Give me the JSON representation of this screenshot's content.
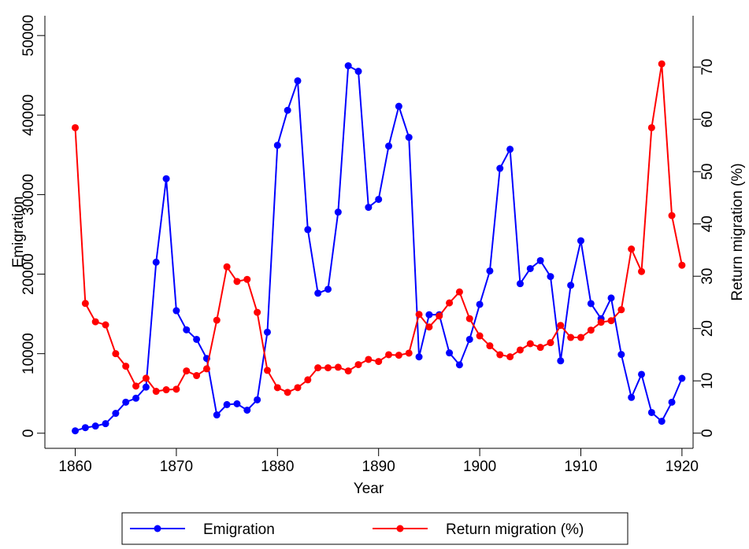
{
  "chart_data": {
    "type": "line",
    "x_label": "Year",
    "y_label": "Emigration",
    "y2_label": "Return migration (%)",
    "x": [
      1860,
      1861,
      1862,
      1863,
      1864,
      1865,
      1866,
      1867,
      1868,
      1869,
      1870,
      1871,
      1872,
      1873,
      1874,
      1875,
      1876,
      1877,
      1878,
      1879,
      1880,
      1881,
      1882,
      1883,
      1884,
      1885,
      1886,
      1887,
      1888,
      1889,
      1890,
      1891,
      1892,
      1893,
      1894,
      1895,
      1896,
      1897,
      1898,
      1899,
      1900,
      1901,
      1902,
      1903,
      1904,
      1905,
      1906,
      1907,
      1908,
      1909,
      1910,
      1911,
      1912,
      1913,
      1914,
      1915,
      1916,
      1917,
      1918,
      1919,
      1920
    ],
    "series": [
      {
        "name": "Emigration",
        "color": "#0000ff",
        "axis": "y",
        "values": [
          300,
          700,
          900,
          1200,
          2500,
          3900,
          4400,
          5800,
          21500,
          32000,
          15400,
          13000,
          11800,
          9400,
          2300,
          3600,
          3700,
          2900,
          4200,
          12700,
          36200,
          40600,
          44300,
          25600,
          17600,
          18100,
          27800,
          46200,
          45500,
          28400,
          29400,
          36100,
          41100,
          37200,
          9600,
          14900,
          14900,
          10100,
          8600,
          11800,
          16200,
          20400,
          33300,
          35700,
          18800,
          20700,
          21700,
          19700,
          9100,
          18600,
          24200,
          16300,
          14400,
          17000,
          9900,
          4500,
          7400,
          2600,
          1500,
          3900,
          6900
        ]
      },
      {
        "name": "Return migration (%)",
        "color": "#ff0000",
        "axis": "y2",
        "values": [
          58.4,
          24.8,
          21.3,
          20.7,
          15.2,
          12.8,
          9.0,
          10.5,
          8.0,
          8.3,
          8.4,
          11.9,
          11.0,
          12.3,
          21.6,
          31.8,
          29.0,
          29.4,
          23.1,
          12.0,
          8.7,
          7.8,
          8.7,
          10.2,
          12.5,
          12.5,
          12.6,
          11.9,
          13.1,
          14.1,
          13.7,
          15.0,
          14.9,
          15.3,
          22.7,
          20.3,
          22.4,
          24.9,
          27.0,
          21.9,
          18.6,
          16.7,
          15.0,
          14.6,
          15.9,
          17.1,
          16.4,
          17.3,
          20.6,
          18.3,
          18.3,
          19.7,
          21.2,
          21.5,
          23.6,
          35.2,
          30.9,
          58.4,
          70.6,
          41.6,
          32.1
        ]
      }
    ],
    "xlim": [
      1857,
      1921.1
    ],
    "xticks": [
      1860,
      1870,
      1880,
      1890,
      1900,
      1910,
      1920
    ],
    "ylim": [
      -1900,
      51500
    ],
    "yticks": [
      0,
      10000,
      20000,
      30000,
      40000,
      50000
    ],
    "y2lim": [
      -2.9,
      78.3
    ],
    "y2ticks": [
      0,
      10,
      20,
      30,
      40,
      50,
      60,
      70
    ],
    "grid": false,
    "legend": "bottom"
  }
}
